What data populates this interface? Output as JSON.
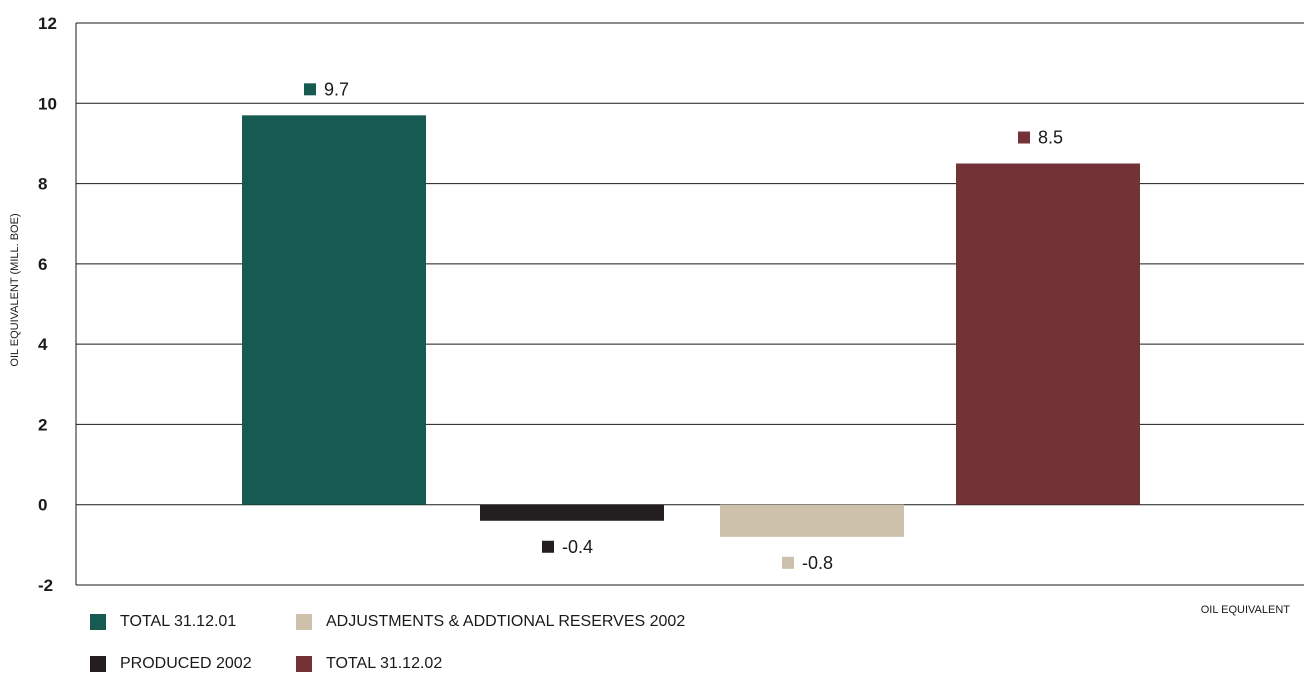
{
  "chart_data": {
    "type": "bar",
    "categories": [
      "TOTAL 31.12.01",
      "PRODUCED 2002",
      "ADJUSTMENTS & ADDTIONAL RESERVES 2002",
      "TOTAL 31.12.02"
    ],
    "values": [
      9.7,
      -0.4,
      -0.8,
      8.5
    ],
    "data_labels": [
      "9.7",
      "-0.4",
      "-0.8",
      "8.5"
    ],
    "colors": [
      "#175a52",
      "#231f20",
      "#cdc1ac",
      "#733236"
    ],
    "ylabel": "OIL EQUIVALENT (MILL. BOE)",
    "xlabel": "OIL EQUIVALENT",
    "ylim": [
      -2,
      12
    ],
    "yticks": [
      -2,
      0,
      2,
      4,
      6,
      8,
      10,
      12
    ],
    "grid": true,
    "legend_position": "bottom-left"
  },
  "legend": [
    {
      "label": "TOTAL 31.12.01",
      "color": "#175a52"
    },
    {
      "label": "ADJUSTMENTS & ADDTIONAL RESERVES 2002",
      "color": "#cdc1ac"
    },
    {
      "label": "PRODUCED 2002",
      "color": "#231f20"
    },
    {
      "label": "TOTAL 31.12.02",
      "color": "#733236"
    }
  ]
}
